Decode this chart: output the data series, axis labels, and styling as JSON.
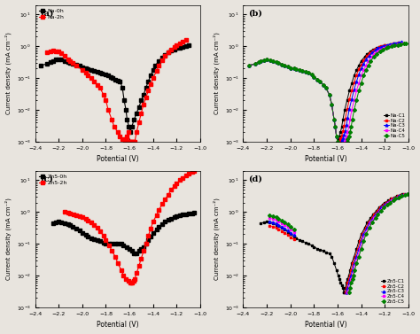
{
  "xlim": [
    -2.4,
    -1.0
  ],
  "ylim": [
    0.001,
    20.0
  ],
  "xlabel": "Potential (V)",
  "ylabel": "Current density (mA cm⁻²)",
  "bg_color": "#e8e4de",
  "a": {
    "Na0h": {
      "color": "black",
      "label": "Na-0h",
      "marker": "s",
      "x": [
        -2.35,
        -2.3,
        -2.27,
        -2.25,
        -2.22,
        -2.2,
        -2.18,
        -2.15,
        -2.12,
        -2.1,
        -2.08,
        -2.05,
        -2.02,
        -2.0,
        -1.97,
        -1.95,
        -1.92,
        -1.9,
        -1.87,
        -1.85,
        -1.83,
        -1.8,
        -1.78,
        -1.76,
        -1.74,
        -1.72,
        -1.7,
        -1.68,
        -1.66,
        -1.645,
        -1.63,
        -1.62,
        -1.605,
        -1.595,
        -1.58,
        -1.56,
        -1.54,
        -1.52,
        -1.5,
        -1.48,
        -1.46,
        -1.44,
        -1.42,
        -1.4,
        -1.38,
        -1.35,
        -1.32,
        -1.3,
        -1.27,
        -1.25,
        -1.22,
        -1.2,
        -1.17,
        -1.15,
        -1.12,
        -1.1
      ],
      "y": [
        0.25,
        0.28,
        0.32,
        0.35,
        0.38,
        0.4,
        0.38,
        0.35,
        0.32,
        0.3,
        0.28,
        0.26,
        0.24,
        0.22,
        0.2,
        0.19,
        0.18,
        0.17,
        0.16,
        0.15,
        0.14,
        0.13,
        0.12,
        0.11,
        0.1,
        0.09,
        0.085,
        0.08,
        0.05,
        0.02,
        0.01,
        0.005,
        0.003,
        0.002,
        0.003,
        0.005,
        0.008,
        0.012,
        0.02,
        0.03,
        0.05,
        0.08,
        0.12,
        0.18,
        0.25,
        0.35,
        0.45,
        0.55,
        0.65,
        0.72,
        0.8,
        0.87,
        0.92,
        0.96,
        1.0,
        1.05
      ]
    },
    "Na2h": {
      "color": "red",
      "label": "Na-2h",
      "marker": "s",
      "x": [
        -2.3,
        -2.27,
        -2.25,
        -2.22,
        -2.2,
        -2.18,
        -2.15,
        -2.12,
        -2.1,
        -2.08,
        -2.05,
        -2.0,
        -1.97,
        -1.95,
        -1.92,
        -1.9,
        -1.87,
        -1.85,
        -1.82,
        -1.8,
        -1.78,
        -1.75,
        -1.73,
        -1.7,
        -1.68,
        -1.66,
        -1.64,
        -1.63,
        -1.62,
        -1.61,
        -1.6,
        -1.595,
        -1.585,
        -1.575,
        -1.565,
        -1.555,
        -1.54,
        -1.52,
        -1.5,
        -1.48,
        -1.46,
        -1.44,
        -1.42,
        -1.4,
        -1.37,
        -1.35,
        -1.32,
        -1.3,
        -1.27,
        -1.25,
        -1.22,
        -1.2,
        -1.17,
        -1.15,
        -1.12
      ],
      "y": [
        0.65,
        0.68,
        0.72,
        0.7,
        0.68,
        0.6,
        0.5,
        0.4,
        0.35,
        0.3,
        0.25,
        0.18,
        0.15,
        0.12,
        0.1,
        0.08,
        0.06,
        0.05,
        0.03,
        0.02,
        0.01,
        0.005,
        0.003,
        0.002,
        0.0015,
        0.0012,
        0.001,
        0.0012,
        0.0015,
        0.002,
        0.001,
        0.001,
        0.001,
        0.001,
        0.001,
        0.001,
        0.002,
        0.004,
        0.008,
        0.015,
        0.025,
        0.04,
        0.065,
        0.1,
        0.17,
        0.25,
        0.37,
        0.5,
        0.65,
        0.8,
        0.95,
        1.1,
        1.25,
        1.4,
        1.55
      ]
    }
  },
  "b_colors": [
    "black",
    "red",
    "blue",
    "magenta",
    "green"
  ],
  "b_labels": [
    "Na-C1",
    "Na-C2",
    "Na-C3",
    "Na-C4",
    "Na-C5"
  ],
  "b_markers": [
    "s",
    "s",
    "^",
    "s",
    "D"
  ],
  "b_cat_x_base": [
    -2.35,
    -2.3,
    -2.27,
    -2.25,
    -2.22,
    -2.2,
    -2.17,
    -2.15,
    -2.12,
    -2.1,
    -2.07,
    -2.05,
    -2.02,
    -2.0,
    -1.97,
    -1.95,
    -1.92,
    -1.9,
    -1.87,
    -1.85,
    -1.82,
    -1.8,
    -1.77,
    -1.75,
    -1.72,
    -1.7,
    -1.67,
    -1.65,
    -1.63,
    -1.62,
    -1.61,
    -1.6
  ],
  "b_cat_y_base": [
    0.25,
    0.28,
    0.32,
    0.35,
    0.37,
    0.38,
    0.36,
    0.34,
    0.32,
    0.3,
    0.27,
    0.25,
    0.23,
    0.21,
    0.2,
    0.19,
    0.18,
    0.17,
    0.16,
    0.15,
    0.13,
    0.11,
    0.09,
    0.08,
    0.06,
    0.05,
    0.03,
    0.015,
    0.005,
    0.003,
    0.0015,
    0.001
  ],
  "b_an_x_base": [
    -1.6,
    -1.595,
    -1.585,
    -1.575,
    -1.565,
    -1.555,
    -1.54,
    -1.52,
    -1.5,
    -1.48,
    -1.46,
    -1.44,
    -1.42,
    -1.4,
    -1.37,
    -1.35,
    -1.32,
    -1.3,
    -1.27,
    -1.25,
    -1.22,
    -1.2,
    -1.17,
    -1.15,
    -1.12,
    -1.1
  ],
  "b_an_y_base": [
    0.001,
    0.0012,
    0.0015,
    0.002,
    0.003,
    0.005,
    0.01,
    0.02,
    0.04,
    0.07,
    0.12,
    0.18,
    0.25,
    0.35,
    0.47,
    0.58,
    0.7,
    0.8,
    0.88,
    0.95,
    1.0,
    1.05,
    1.1,
    1.15,
    1.2,
    1.25
  ],
  "b_an_offsets": [
    0.0,
    0.02,
    0.04,
    0.06,
    0.08
  ],
  "b_cat_offsets": [
    0.0,
    0.0,
    0.0,
    0.0,
    0.0
  ],
  "b_an_scales": [
    1.0,
    1.05,
    1.1,
    1.0,
    1.0
  ],
  "c": {
    "Zn5_0h": {
      "color": "black",
      "label": "Zn5-0h",
      "marker": "s",
      "x": [
        -2.25,
        -2.22,
        -2.2,
        -2.18,
        -2.15,
        -2.12,
        -2.1,
        -2.08,
        -2.05,
        -2.02,
        -2.0,
        -1.97,
        -1.95,
        -1.92,
        -1.9,
        -1.87,
        -1.85,
        -1.82,
        -1.8,
        -1.77,
        -1.75,
        -1.72,
        -1.7,
        -1.67,
        -1.65,
        -1.62,
        -1.6,
        -1.58,
        -1.56,
        -1.54,
        -1.52,
        -1.5,
        -1.48,
        -1.46,
        -1.44,
        -1.42,
        -1.4,
        -1.37,
        -1.35,
        -1.32,
        -1.3,
        -1.27,
        -1.25,
        -1.22,
        -1.2,
        -1.17,
        -1.15,
        -1.12,
        -1.1,
        -1.07,
        -1.05
      ],
      "y": [
        0.45,
        0.48,
        0.5,
        0.48,
        0.45,
        0.42,
        0.38,
        0.34,
        0.3,
        0.26,
        0.22,
        0.19,
        0.17,
        0.15,
        0.14,
        0.13,
        0.12,
        0.11,
        0.1,
        0.1,
        0.1,
        0.1,
        0.1,
        0.1,
        0.09,
        0.08,
        0.07,
        0.06,
        0.05,
        0.05,
        0.06,
        0.07,
        0.08,
        0.1,
        0.13,
        0.17,
        0.22,
        0.28,
        0.35,
        0.42,
        0.5,
        0.57,
        0.63,
        0.68,
        0.73,
        0.78,
        0.82,
        0.86,
        0.89,
        0.92,
        0.94
      ]
    },
    "Zn5_2h": {
      "color": "red",
      "label": "Zn5-2h",
      "marker": "s",
      "x": [
        -2.15,
        -2.12,
        -2.1,
        -2.07,
        -2.05,
        -2.02,
        -2.0,
        -1.97,
        -1.95,
        -1.92,
        -1.9,
        -1.87,
        -1.85,
        -1.82,
        -1.8,
        -1.77,
        -1.75,
        -1.72,
        -1.7,
        -1.67,
        -1.65,
        -1.63,
        -1.61,
        -1.595,
        -1.585,
        -1.575,
        -1.565,
        -1.555,
        -1.54,
        -1.52,
        -1.5,
        -1.48,
        -1.46,
        -1.44,
        -1.42,
        -1.4,
        -1.37,
        -1.35,
        -1.32,
        -1.3,
        -1.27,
        -1.25,
        -1.22,
        -1.2,
        -1.17,
        -1.15,
        -1.12,
        -1.1,
        -1.07,
        -1.05
      ],
      "y": [
        1.0,
        0.95,
        0.9,
        0.85,
        0.8,
        0.75,
        0.7,
        0.62,
        0.55,
        0.47,
        0.4,
        0.32,
        0.25,
        0.18,
        0.13,
        0.09,
        0.06,
        0.04,
        0.025,
        0.015,
        0.01,
        0.008,
        0.007,
        0.006,
        0.006,
        0.006,
        0.007,
        0.008,
        0.012,
        0.02,
        0.035,
        0.06,
        0.1,
        0.18,
        0.3,
        0.5,
        0.8,
        1.2,
        1.8,
        2.5,
        3.5,
        5.0,
        6.5,
        8.0,
        10.0,
        12.0,
        14.0,
        16.0,
        18.0,
        20.0
      ]
    }
  },
  "d_colors": [
    "black",
    "red",
    "blue",
    "magenta",
    "green"
  ],
  "d_labels": [
    "Zn5-C1",
    "Zn5-C2",
    "Zn5-C3",
    "Zn5-C4",
    "Zn5-C5"
  ],
  "d_markers": [
    "s",
    "s",
    "^",
    "s",
    "D"
  ],
  "d_cat_x_base": [
    -2.25,
    -2.22,
    -2.2,
    -2.18,
    -2.15,
    -2.12,
    -2.1,
    -2.07,
    -2.05,
    -2.02,
    -2.0,
    -1.97,
    -1.95,
    -1.92,
    -1.9,
    -1.87,
    -1.85,
    -1.82,
    -1.8,
    -1.77,
    -1.75,
    -1.72,
    -1.7,
    -1.67,
    -1.65,
    -1.63,
    -1.61,
    -1.595,
    -1.585,
    -1.575,
    -1.565,
    -1.555,
    -1.545
  ],
  "d_cat_y_base": [
    0.45,
    0.48,
    0.5,
    0.47,
    0.44,
    0.4,
    0.36,
    0.32,
    0.28,
    0.24,
    0.2,
    0.17,
    0.15,
    0.13,
    0.12,
    0.11,
    0.1,
    0.09,
    0.08,
    0.07,
    0.065,
    0.06,
    0.055,
    0.05,
    0.04,
    0.025,
    0.015,
    0.01,
    0.008,
    0.006,
    0.005,
    0.004,
    0.003
  ],
  "d_an_x_base": [
    -1.545,
    -1.535,
    -1.525,
    -1.515,
    -1.505,
    -1.495,
    -1.48,
    -1.46,
    -1.44,
    -1.42,
    -1.4,
    -1.37,
    -1.35,
    -1.32,
    -1.3,
    -1.27,
    -1.25,
    -1.22,
    -1.2,
    -1.17,
    -1.15,
    -1.12,
    -1.1,
    -1.07,
    -1.05
  ],
  "d_an_y_base": [
    0.003,
    0.004,
    0.006,
    0.008,
    0.01,
    0.015,
    0.025,
    0.04,
    0.07,
    0.12,
    0.2,
    0.32,
    0.47,
    0.65,
    0.85,
    1.1,
    1.4,
    1.7,
    2.0,
    2.3,
    2.6,
    2.9,
    3.2,
    3.4,
    3.6
  ],
  "d_an_offsets": [
    0.0,
    0.01,
    0.02,
    0.03,
    0.04
  ],
  "d_an_scales": [
    1.0,
    1.0,
    1.0,
    1.0,
    1.0
  ]
}
